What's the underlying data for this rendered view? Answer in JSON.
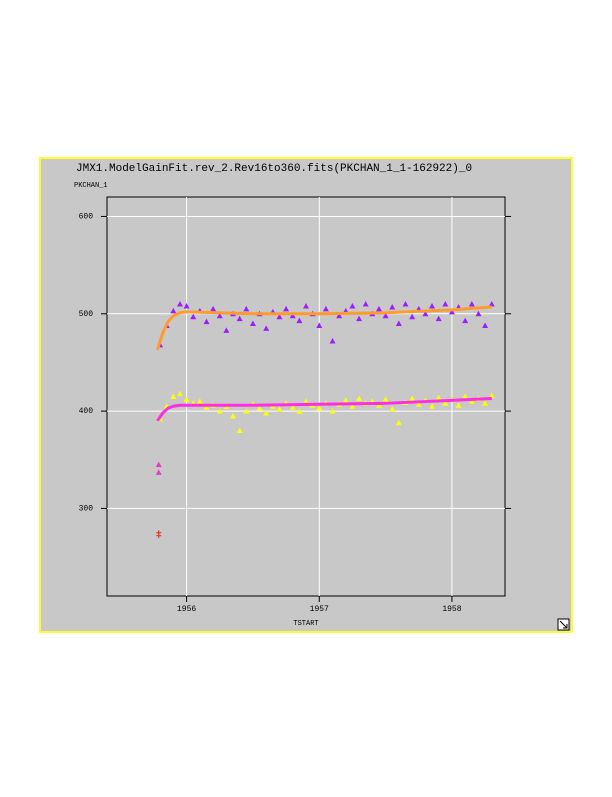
{
  "chart_data": {
    "type": "scatter",
    "title": "JMX1.ModelGainFit.rev_2.Rev16to360.fits(PKCHAN_1_1-162922)_0",
    "ylabel": "PKCHAN_1",
    "xlabel": "TSTART",
    "xlim": [
      1955.4,
      1958.4
    ],
    "ylim": [
      210,
      620
    ],
    "xticks": [
      1956,
      1957,
      1958
    ],
    "yticks": [
      300,
      400,
      500,
      600
    ],
    "grid": true,
    "series": [
      {
        "color": "#9b1fff",
        "marker": "triangle",
        "x": [
          1955.8,
          1955.85,
          1955.9,
          1955.95,
          1956,
          1956.05,
          1956.1,
          1956.15,
          1956.2,
          1956.25,
          1956.3,
          1956.35,
          1956.4,
          1956.45,
          1956.5,
          1956.55,
          1956.6,
          1956.65,
          1956.7,
          1956.75,
          1956.8,
          1956.85,
          1956.9,
          1956.95,
          1957,
          1957.05,
          1957.1,
          1957.15,
          1957.2,
          1957.25,
          1957.3,
          1957.35,
          1957.4,
          1957.45,
          1957.5,
          1957.55,
          1957.6,
          1957.65,
          1957.7,
          1957.75,
          1957.8,
          1957.85,
          1957.9,
          1957.95,
          1958,
          1958.05,
          1958.1,
          1958.15,
          1958.2,
          1958.25,
          1958.3
        ],
        "values": [
          468,
          488,
          503,
          510,
          508,
          497,
          503,
          492,
          505,
          498,
          483,
          500,
          495,
          505,
          490,
          500,
          485,
          502,
          497,
          505,
          498,
          493,
          508,
          500,
          488,
          505,
          472,
          498,
          503,
          508,
          495,
          510,
          500,
          505,
          498,
          507,
          490,
          510,
          497,
          505,
          500,
          508,
          495,
          510,
          502,
          507,
          493,
          510,
          500,
          488,
          510
        ]
      },
      {
        "color": "#ffff00",
        "marker": "triangle",
        "x": [
          1955.8,
          1955.85,
          1955.9,
          1955.95,
          1956,
          1956.05,
          1956.1,
          1956.15,
          1956.2,
          1956.25,
          1956.3,
          1956.35,
          1956.4,
          1956.45,
          1956.5,
          1956.55,
          1956.6,
          1956.65,
          1956.7,
          1956.75,
          1956.8,
          1956.85,
          1956.9,
          1956.95,
          1957,
          1957.05,
          1957.1,
          1957.15,
          1957.2,
          1957.25,
          1957.3,
          1957.35,
          1957.4,
          1957.45,
          1957.5,
          1957.55,
          1957.6,
          1957.65,
          1957.7,
          1957.75,
          1957.8,
          1957.85,
          1957.9,
          1957.95,
          1958,
          1958.05,
          1958.1,
          1958.15,
          1958.2,
          1958.25,
          1958.3
        ],
        "values": [
          392,
          405,
          415,
          418,
          412,
          408,
          410,
          404,
          406,
          400,
          405,
          395,
          380,
          400,
          407,
          403,
          398,
          405,
          402,
          408,
          404,
          400,
          410,
          406,
          403,
          408,
          400,
          407,
          411,
          405,
          413,
          408,
          410,
          406,
          412,
          402,
          388,
          409,
          413,
          407,
          411,
          405,
          414,
          408,
          412,
          406,
          415,
          410,
          413,
          408,
          416
        ]
      },
      {
        "color": "#ff9a2e",
        "marker": "line",
        "x": [
          1955.78,
          1955.82,
          1955.86,
          1955.9,
          1955.95,
          1956,
          1956.5,
          1957,
          1957.5,
          1958,
          1958.3
        ],
        "values": [
          463,
          480,
          492,
          498,
          501,
          502,
          500,
          500,
          501,
          504,
          507
        ]
      },
      {
        "color": "#ff2ee0",
        "marker": "line",
        "x": [
          1955.78,
          1955.82,
          1955.86,
          1955.9,
          1955.95,
          1956,
          1956.5,
          1957,
          1957.5,
          1958,
          1958.3
        ],
        "values": [
          390,
          398,
          403,
          405,
          406,
          406,
          406,
          407,
          408,
          411,
          413
        ]
      },
      {
        "color": "#e040c0",
        "marker": "triangle",
        "x": [
          1955.79,
          1955.79
        ],
        "values": [
          345,
          337
        ]
      },
      {
        "color": "#e04020",
        "marker": "plus",
        "x": [
          1955.79,
          1955.79
        ],
        "values": [
          275,
          272
        ]
      }
    ]
  }
}
